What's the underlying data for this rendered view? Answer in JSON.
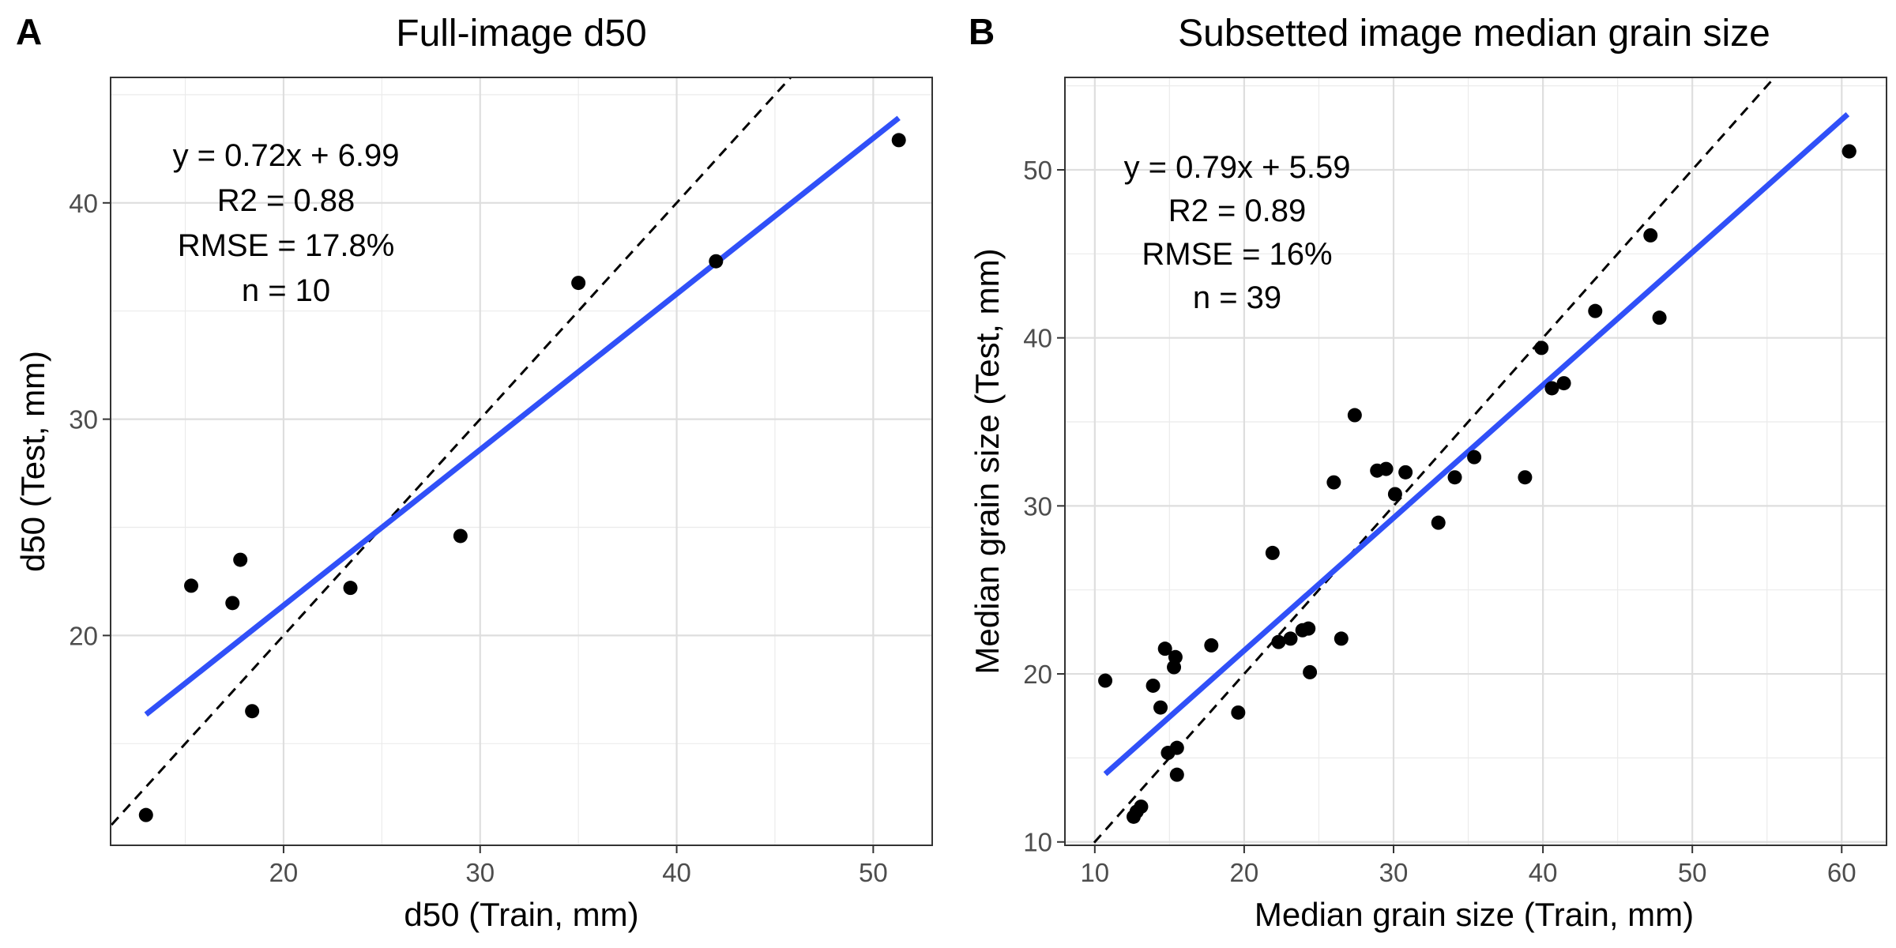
{
  "chart_data": [
    {
      "panel_label": "A",
      "type": "scatter",
      "title": "Full-image d50",
      "xlabel": "d50 (Train, mm)",
      "ylabel": "d50 (Test, mm)",
      "xlim": [
        11.2,
        53.0
      ],
      "ylim": [
        10.3,
        45.8
      ],
      "xticks": [
        20,
        30,
        40,
        50
      ],
      "yticks": [
        20,
        30,
        40
      ],
      "grid": true,
      "annotation": [
        "y = 0.72x + 6.99",
        "R2 = 0.88",
        "RMSE = 17.8%",
        "n = 10"
      ],
      "points": [
        {
          "x": 13.0,
          "y": 11.7
        },
        {
          "x": 15.3,
          "y": 22.3
        },
        {
          "x": 17.4,
          "y": 21.5
        },
        {
          "x": 17.8,
          "y": 23.5
        },
        {
          "x": 18.4,
          "y": 16.5
        },
        {
          "x": 23.4,
          "y": 22.2
        },
        {
          "x": 29.0,
          "y": 24.6
        },
        {
          "x": 35.0,
          "y": 36.3
        },
        {
          "x": 42.0,
          "y": 37.3
        },
        {
          "x": 51.3,
          "y": 42.9
        }
      ],
      "fit_line": {
        "color": "#3050f8",
        "slope": 0.72,
        "intercept": 6.99,
        "x_range": [
          13.0,
          51.3
        ]
      },
      "reference_line": {
        "color": "#000000",
        "style": "dashed",
        "slope": 1,
        "intercept": 0
      }
    },
    {
      "panel_label": "B",
      "type": "scatter",
      "title": "Subsetted image median grain size",
      "xlabel": "Median grain size (Train, mm)",
      "ylabel": "Median grain size (Test, mm)",
      "xlim": [
        8.0,
        63.0
      ],
      "ylim": [
        9.8,
        55.5
      ],
      "xticks": [
        10,
        20,
        30,
        40,
        50,
        60
      ],
      "yticks": [
        10,
        20,
        30,
        40,
        50
      ],
      "grid": true,
      "annotation": [
        "y = 0.79x + 5.59",
        "R2 = 0.89",
        "RMSE = 16%",
        "n = 39"
      ],
      "points": [
        {
          "x": 10.7,
          "y": 19.6
        },
        {
          "x": 12.6,
          "y": 11.5
        },
        {
          "x": 12.8,
          "y": 11.8
        },
        {
          "x": 13.1,
          "y": 12.1
        },
        {
          "x": 13.9,
          "y": 19.3
        },
        {
          "x": 14.4,
          "y": 18.0
        },
        {
          "x": 14.7,
          "y": 21.5
        },
        {
          "x": 14.9,
          "y": 15.3
        },
        {
          "x": 15.3,
          "y": 20.4
        },
        {
          "x": 15.4,
          "y": 21.0
        },
        {
          "x": 15.5,
          "y": 15.6
        },
        {
          "x": 15.5,
          "y": 14.0
        },
        {
          "x": 17.8,
          "y": 21.7
        },
        {
          "x": 19.6,
          "y": 17.7
        },
        {
          "x": 21.9,
          "y": 27.2
        },
        {
          "x": 22.3,
          "y": 21.9
        },
        {
          "x": 23.1,
          "y": 22.1
        },
        {
          "x": 23.9,
          "y": 22.6
        },
        {
          "x": 24.3,
          "y": 22.7
        },
        {
          "x": 24.4,
          "y": 20.1
        },
        {
          "x": 26.0,
          "y": 31.4
        },
        {
          "x": 26.5,
          "y": 22.1
        },
        {
          "x": 27.4,
          "y": 35.4
        },
        {
          "x": 28.9,
          "y": 32.1
        },
        {
          "x": 29.5,
          "y": 32.2
        },
        {
          "x": 30.1,
          "y": 30.7
        },
        {
          "x": 30.8,
          "y": 32.0
        },
        {
          "x": 33.0,
          "y": 29.0
        },
        {
          "x": 34.1,
          "y": 31.7
        },
        {
          "x": 35.4,
          "y": 32.9
        },
        {
          "x": 38.8,
          "y": 31.7
        },
        {
          "x": 39.9,
          "y": 39.4
        },
        {
          "x": 40.6,
          "y": 37.0
        },
        {
          "x": 41.4,
          "y": 37.3
        },
        {
          "x": 43.5,
          "y": 41.6
        },
        {
          "x": 47.2,
          "y": 46.1
        },
        {
          "x": 47.8,
          "y": 41.2
        },
        {
          "x": 60.5,
          "y": 51.1
        },
        {
          "x": 60.5,
          "y": 51.1
        }
      ],
      "fit_line": {
        "color": "#3050f8",
        "slope": 0.79,
        "intercept": 5.59,
        "x_range": [
          10.7,
          60.4
        ]
      },
      "reference_line": {
        "color": "#000000",
        "style": "dashed",
        "slope": 1,
        "intercept": 0
      }
    }
  ]
}
